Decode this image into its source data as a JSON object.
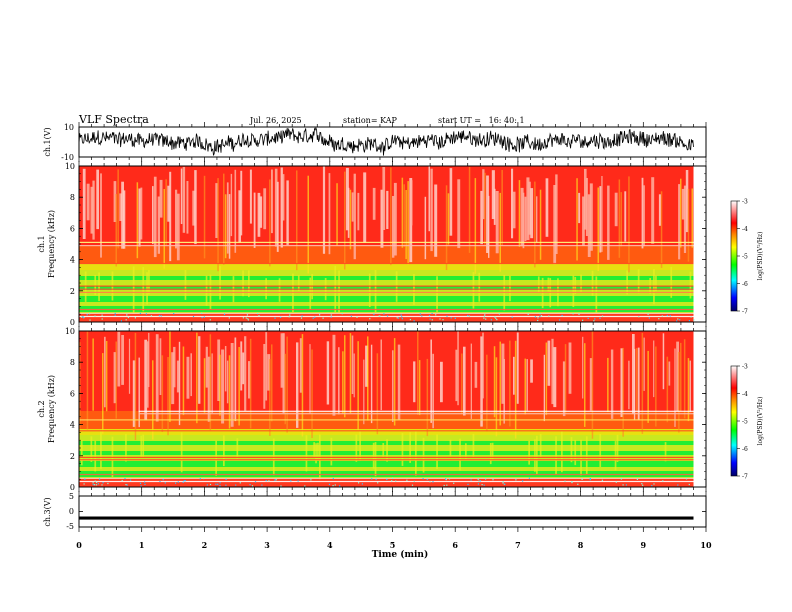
{
  "header": {
    "title": "VLF Spectra",
    "date": "Jul. 26, 2025",
    "station": "station= KAP",
    "start_time": "start UT =   16: 40: 1"
  },
  "colors": {
    "trace": "#000000",
    "axis": "#000000",
    "colormap": [
      "#000066",
      "#0000ff",
      "#00ffff",
      "#00ff00",
      "#ffff00",
      "#ff8000",
      "#ff0000",
      "#ffffff"
    ]
  },
  "chart_data": [
    {
      "type": "line",
      "name": "ch1-waveform",
      "ylabel": "ch.1(V)",
      "ylim": [
        -10,
        10
      ],
      "ytick_labels": [
        "10",
        "-10"
      ],
      "x_range_min": [
        0,
        10
      ],
      "data_end_min": 9.8,
      "description_values": {
        "mean_V": 0.5,
        "amplitude_V": 6
      }
    },
    {
      "type": "heatmap",
      "name": "ch1-spectrogram",
      "ylabel": "ch.1\nFrequency (kHz)",
      "ylim": [
        0,
        10
      ],
      "ytick_labels": [
        "0",
        "2",
        "4",
        "6",
        "8",
        "10"
      ],
      "x_range_min": [
        0,
        10
      ],
      "data_end_min": 9.8,
      "bands_kHz": {
        "high_power": [
          3.7,
          10
        ],
        "mid_power": [
          0.4,
          3.7
        ]
      },
      "colorbar": {
        "label": "log(PSD)(V²/Hz)",
        "range": [
          -7,
          -3
        ],
        "tick_labels": [
          "-3",
          "-4",
          "-5",
          "-6",
          "-7"
        ]
      }
    },
    {
      "type": "heatmap",
      "name": "ch2-spectrogram",
      "ylabel": "ch.2\nFrequency (kHz)",
      "ylim": [
        0,
        10
      ],
      "ytick_labels": [
        "0",
        "2",
        "4",
        "6",
        "8",
        "10"
      ],
      "x_range_min": [
        0,
        10
      ],
      "data_end_min": 9.8,
      "bands_kHz": {
        "high_power": [
          3.7,
          10
        ],
        "mid_power": [
          0.4,
          3.7
        ]
      },
      "colorbar": {
        "label": "log(PSD)(V²/Hz)",
        "range": [
          -7,
          -3
        ],
        "tick_labels": [
          "-3",
          "-4",
          "-5",
          "-6",
          "-7"
        ]
      }
    },
    {
      "type": "line",
      "name": "ch3-waveform",
      "ylabel": "ch.3(V)",
      "ylim": [
        -5,
        5
      ],
      "ytick_labels": [
        "5",
        "0",
        "-5"
      ],
      "x_range_min": [
        0,
        10
      ],
      "data_end_min": 9.8,
      "description_values": {
        "mean_V": -2.1,
        "amplitude_V": 0.5
      }
    }
  ],
  "xaxis": {
    "label": "Time (min)",
    "tick_labels": [
      "0",
      "1",
      "2",
      "3",
      "4",
      "5",
      "6",
      "7",
      "8",
      "9",
      "10"
    ]
  }
}
